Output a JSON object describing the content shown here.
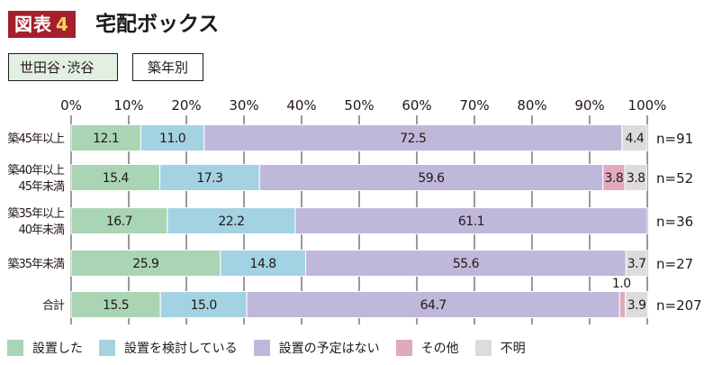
{
  "figure": {
    "label_prefix": "図表",
    "label_number": "4",
    "title": "宅配ボックス"
  },
  "tags": {
    "area": "世田谷･渋谷",
    "grouping": "築年別"
  },
  "chart_data": {
    "type": "bar",
    "orientation": "horizontal",
    "stacked": true,
    "title": "宅配ボックス",
    "xlabel": "",
    "ylabel": "",
    "xlim": [
      0,
      100
    ],
    "x_ticks": [
      "0%",
      "10%",
      "20%",
      "30%",
      "40%",
      "50%",
      "60%",
      "70%",
      "80%",
      "90%",
      "100%"
    ],
    "grid": true,
    "legend_position": "bottom",
    "categories": [
      [
        "築45年以上"
      ],
      [
        "築40年以上",
        "45年未満"
      ],
      [
        "築35年以上",
        "40年未満"
      ],
      [
        "築35年未満"
      ],
      [
        "合計"
      ]
    ],
    "sample_sizes": [
      "n=91",
      "n=52",
      "n=36",
      "n=27",
      "n=207"
    ],
    "series": [
      {
        "name": "設置した",
        "color": "#a9d5b4",
        "values": [
          12.1,
          15.4,
          16.7,
          25.9,
          15.5
        ]
      },
      {
        "name": "設置を検討している",
        "color": "#a3d2e2",
        "values": [
          11.0,
          17.3,
          22.2,
          14.8,
          15.0
        ]
      },
      {
        "name": "設置の予定はない",
        "color": "#bfb8da",
        "values": [
          72.5,
          59.6,
          61.1,
          55.6,
          64.7
        ]
      },
      {
        "name": "その他",
        "color": "#e2a9be",
        "values": [
          0,
          3.8,
          0,
          0,
          1.0
        ]
      },
      {
        "name": "不明",
        "color": "#dcdcdc",
        "values": [
          4.4,
          3.8,
          0,
          3.7,
          3.9
        ]
      }
    ],
    "value_labels": [
      [
        "12.1",
        "11.0",
        "72.5",
        "",
        "4.4"
      ],
      [
        "15.4",
        "17.3",
        "59.6",
        "3.8",
        "3.8"
      ],
      [
        "16.7",
        "22.2",
        "61.1",
        "",
        ""
      ],
      [
        "25.9",
        "14.8",
        "55.6",
        "",
        "3.7"
      ],
      [
        "15.5",
        "15.0",
        "64.7",
        "1.0",
        "3.9"
      ]
    ]
  },
  "colors": {
    "label_bg": "#a3202e",
    "label_number": "#f4d35e",
    "grid": "#9a9a9a",
    "text": "#231815"
  }
}
